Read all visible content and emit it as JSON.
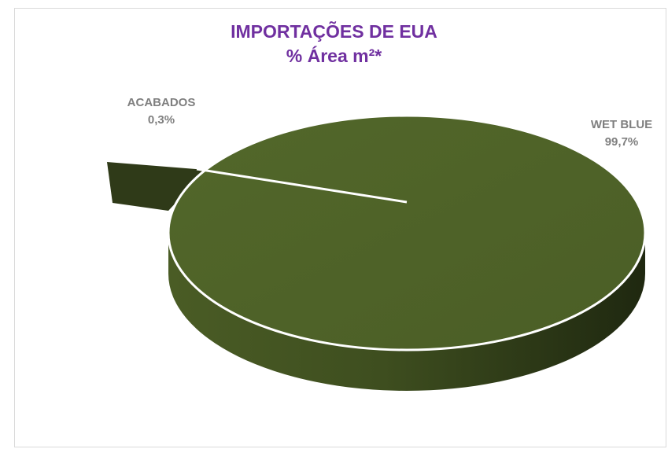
{
  "chart_data": {
    "type": "pie",
    "title": "IMPORTAÇÕES DE EUA",
    "subtitle": "% Área m²*",
    "slices": [
      {
        "label": "WET BLUE",
        "value": 99.7,
        "value_label": "99,7%",
        "color": "#4f6228"
      },
      {
        "label": "ACABADOS",
        "value": 0.3,
        "value_label": "0,3%",
        "color": "#3b4a1d"
      }
    ],
    "exploded_slice": "ACABADOS",
    "style": "3d",
    "legend": "none"
  }
}
